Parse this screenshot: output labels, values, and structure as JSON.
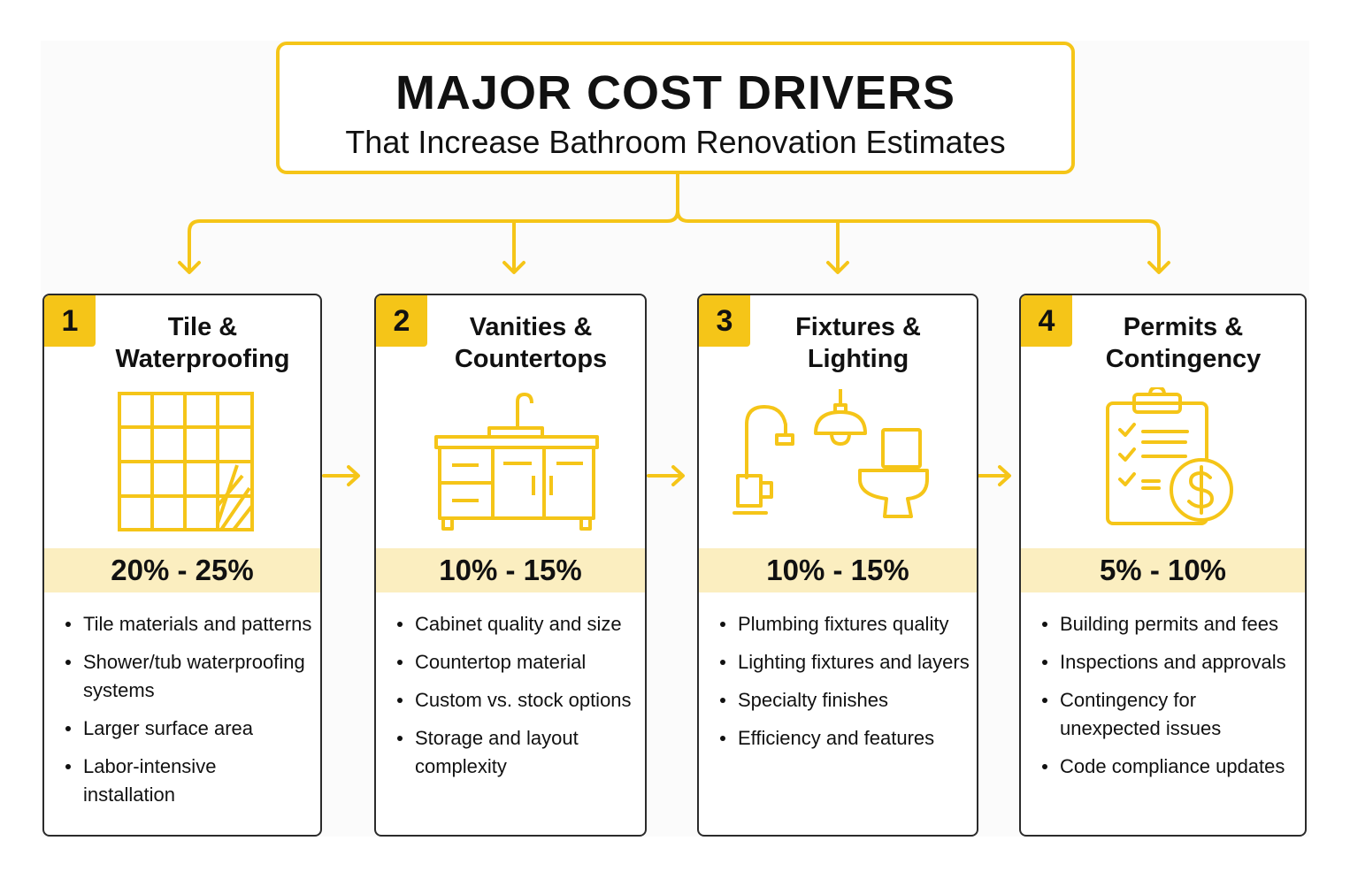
{
  "title": {
    "main": "MAJOR COST DRIVERS",
    "subtitle": "That Increase Bathroom Renovation Estimates"
  },
  "colors": {
    "accent": "#f5c518",
    "band": "#fbeec0",
    "border": "#2b2b2b"
  },
  "cards": [
    {
      "number": "1",
      "title_lines": [
        "Tile &",
        "Waterproofing"
      ],
      "icon": "tile-grid-icon",
      "percent": "20% - 25%",
      "bullets": [
        "Tile materials and patterns",
        "Shower/tub waterproofing systems",
        "Larger surface area",
        "Labor-intensive installation"
      ]
    },
    {
      "number": "2",
      "title_lines": [
        "Vanities &",
        "Countertops"
      ],
      "icon": "vanity-icon",
      "percent": "10% - 15%",
      "bullets": [
        "Cabinet quality and size",
        "Countertop material",
        "Custom vs. stock options",
        "Storage and layout complexity"
      ]
    },
    {
      "number": "3",
      "title_lines": [
        "Fixtures &",
        "Lighting"
      ],
      "icon": "fixtures-icon",
      "percent": "10% - 15%",
      "bullets": [
        "Plumbing fixtures quality",
        "Lighting fixtures and layers",
        "Specialty finishes",
        "Efficiency and features"
      ]
    },
    {
      "number": "4",
      "title_lines": [
        "Permits &",
        "Contingency"
      ],
      "icon": "clipboard-dollar-icon",
      "percent": "5% - 10%",
      "bullets": [
        "Building permits and fees",
        "Inspections and approvals",
        "Contingency for unexpected issues",
        "Code compliance updates"
      ]
    }
  ]
}
